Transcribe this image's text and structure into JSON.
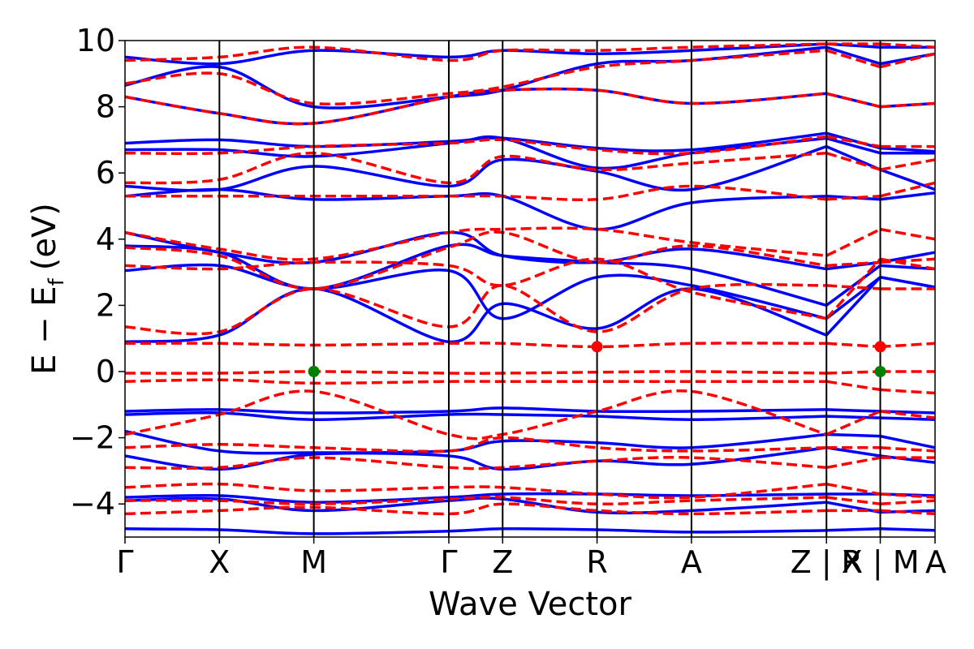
{
  "chart_data": {
    "type": "line",
    "title": "",
    "xlabel": "Wave Vector",
    "ylabel": "E − E_f (eV)",
    "ylabel_parts": {
      "main": "E − E",
      "sub": "f",
      "unit": "(eV)"
    },
    "ylim": [
      -5,
      10
    ],
    "yticks": [
      -4,
      -2,
      0,
      2,
      4,
      6,
      8,
      10
    ],
    "ytick_labels": [
      "−4",
      "−2",
      "0",
      "2",
      "4",
      "6",
      "8",
      "10"
    ],
    "kpath_positions": [
      0,
      1,
      2,
      3.43,
      4.0,
      5.0,
      6.0,
      7.43,
      8.0,
      8.58
    ],
    "kpath_labels": [
      "Γ",
      "X",
      "M",
      "Γ",
      "Z",
      "R",
      "A",
      "Z | X",
      "R | M",
      "A"
    ],
    "xlim": [
      0,
      8.58
    ],
    "grid": false,
    "colors": {
      "solid_series": "#0000ff",
      "dashed_series": "#ff0000",
      "marker_vbm": "#008000",
      "marker_cbm": "#ff0000"
    },
    "series": [
      {
        "style": "solid",
        "bands": [
          [
            -4.75,
            -4.78,
            -4.9,
            -4.82,
            -4.75,
            -4.78,
            -4.85,
            -4.8,
            -4.75,
            -4.8
          ],
          [
            -3.8,
            -3.75,
            -3.95,
            -3.8,
            -3.7,
            -3.7,
            -3.75,
            -3.7,
            -3.7,
            -3.75
          ],
          [
            -3.9,
            -3.85,
            -4.2,
            -3.9,
            -3.85,
            -4.25,
            -4.2,
            -3.95,
            -4.25,
            -4.2
          ],
          [
            -2.55,
            -2.95,
            -2.5,
            -2.55,
            -2.95,
            -2.7,
            -2.8,
            -2.3,
            -2.55,
            -2.75
          ],
          [
            -1.8,
            -2.4,
            -2.45,
            -2.4,
            -2.1,
            -2.15,
            -2.3,
            -1.9,
            -1.95,
            -2.3
          ],
          [
            -1.3,
            -1.25,
            -1.45,
            -1.3,
            -1.3,
            -1.35,
            -1.45,
            -1.35,
            -1.4,
            -1.45
          ],
          [
            -1.2,
            -1.15,
            -1.25,
            -1.2,
            -1.1,
            -1.2,
            -1.2,
            -1.15,
            -1.2,
            -1.25
          ],
          [
            0.9,
            1.1,
            2.5,
            0.9,
            2.05,
            1.3,
            2.5,
            1.1,
            2.85,
            2.55
          ],
          [
            3.05,
            3.2,
            2.5,
            3.05,
            1.6,
            2.85,
            2.6,
            1.6,
            2.85,
            2.55
          ],
          [
            3.8,
            3.6,
            2.5,
            3.8,
            3.5,
            3.3,
            3.1,
            2.0,
            3.2,
            3.1
          ],
          [
            4.2,
            3.6,
            3.3,
            4.2,
            3.5,
            3.3,
            3.7,
            3.1,
            3.3,
            3.6
          ],
          [
            5.3,
            5.5,
            5.2,
            5.3,
            5.3,
            4.3,
            5.1,
            5.3,
            5.2,
            5.4
          ],
          [
            5.6,
            5.5,
            6.2,
            5.6,
            6.4,
            6.05,
            5.5,
            6.8,
            6.1,
            5.5
          ],
          [
            6.7,
            6.7,
            6.5,
            6.9,
            7.05,
            6.15,
            6.6,
            7.05,
            6.6,
            6.6
          ],
          [
            6.9,
            7.0,
            6.8,
            6.95,
            7.05,
            6.75,
            6.7,
            7.2,
            6.75,
            6.65
          ],
          [
            8.3,
            7.8,
            7.5,
            8.3,
            8.5,
            8.5,
            8.1,
            8.4,
            8.0,
            8.1
          ],
          [
            8.65,
            9.2,
            8.0,
            8.3,
            8.5,
            9.3,
            9.4,
            9.8,
            9.3,
            9.6
          ],
          [
            9.5,
            9.3,
            9.7,
            9.5,
            9.7,
            9.6,
            9.7,
            9.9,
            9.8,
            9.8
          ]
        ]
      },
      {
        "style": "dashed",
        "bands": [
          [
            -4.3,
            -4.2,
            -4.1,
            -4.3,
            -4.0,
            -4.2,
            -4.3,
            -4.2,
            -4.2,
            -4.3
          ],
          [
            -3.9,
            -3.9,
            -4.0,
            -3.85,
            -3.8,
            -4.0,
            -3.9,
            -3.8,
            -4.0,
            -3.9
          ],
          [
            -3.5,
            -3.4,
            -3.6,
            -3.5,
            -3.5,
            -3.7,
            -3.8,
            -3.4,
            -3.7,
            -3.8
          ],
          [
            -2.9,
            -2.9,
            -2.6,
            -2.9,
            -2.9,
            -2.7,
            -2.6,
            -2.9,
            -2.6,
            -2.6
          ],
          [
            -2.3,
            -2.2,
            -2.3,
            -2.4,
            -2.0,
            -2.3,
            -2.4,
            -2.3,
            -2.3,
            -2.4
          ],
          [
            -1.9,
            -1.3,
            -0.6,
            -1.9,
            -1.9,
            -1.2,
            -0.6,
            -1.9,
            -1.2,
            -1.4
          ],
          [
            -0.3,
            -0.25,
            -0.35,
            -0.3,
            -0.3,
            -0.3,
            -0.3,
            -0.3,
            -0.55,
            -0.65
          ],
          [
            -0.05,
            -0.05,
            0.0,
            -0.05,
            -0.05,
            -0.02,
            0.0,
            -0.05,
            0.0,
            0.0
          ],
          [
            0.85,
            0.85,
            0.8,
            0.85,
            0.85,
            0.75,
            0.85,
            0.85,
            0.75,
            0.85
          ],
          [
            1.35,
            1.2,
            2.5,
            1.35,
            2.6,
            1.2,
            2.5,
            2.6,
            2.5,
            2.5
          ],
          [
            3.2,
            3.1,
            3.3,
            3.2,
            2.6,
            3.4,
            2.4,
            1.6,
            3.4,
            3.1
          ],
          [
            3.75,
            3.5,
            2.5,
            3.75,
            4.2,
            3.3,
            3.8,
            3.2,
            3.3,
            3.4
          ],
          [
            4.2,
            3.7,
            3.4,
            4.2,
            4.3,
            4.3,
            3.9,
            3.5,
            4.3,
            4.0
          ],
          [
            5.3,
            5.3,
            5.3,
            5.3,
            5.3,
            5.2,
            5.6,
            5.2,
            5.3,
            5.7
          ],
          [
            5.7,
            5.8,
            6.6,
            5.7,
            6.5,
            6.1,
            6.3,
            6.6,
            6.1,
            6.4
          ],
          [
            6.6,
            6.6,
            6.8,
            6.9,
            7.0,
            6.7,
            6.6,
            7.1,
            6.8,
            6.8
          ],
          [
            8.3,
            7.8,
            7.5,
            8.3,
            8.5,
            8.5,
            8.1,
            8.4,
            8.0,
            8.1
          ],
          [
            8.7,
            9.0,
            8.1,
            8.4,
            8.6,
            9.2,
            9.4,
            9.7,
            9.2,
            9.6
          ],
          [
            9.4,
            9.5,
            9.8,
            9.4,
            9.7,
            9.7,
            9.8,
            9.9,
            9.9,
            9.8
          ]
        ]
      }
    ],
    "markers": [
      {
        "x": 2.0,
        "y": 0.0,
        "color": "#008000"
      },
      {
        "x": 5.0,
        "y": 0.75,
        "color": "#ff0000"
      },
      {
        "x": 8.0,
        "y": 0.75,
        "color": "#ff0000"
      },
      {
        "x": 8.0,
        "y": 0.0,
        "color": "#008000"
      }
    ]
  }
}
